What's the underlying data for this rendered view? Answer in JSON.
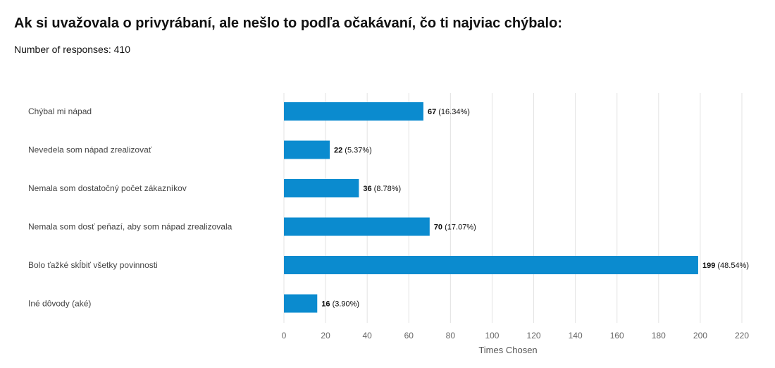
{
  "page": {
    "title": "Ak si uvažovala o privyrábaní, ale nešlo to podľa očakávaní, čo ti najviac chýbalo:",
    "responses_label": "Number of responses: 410"
  },
  "chart_data": {
    "type": "bar",
    "orientation": "horizontal",
    "categories": [
      "Chýbal mi nápad",
      "Nevedela som nápad zrealizovať",
      "Nemala som dostatočný počet zákazníkov",
      "Nemala som dosť peňazí, aby som nápad zrealizovala",
      "Bolo ťažké skĺbiť všetky povinnosti",
      "Iné dôvody (aké)"
    ],
    "values": [
      67,
      22,
      36,
      70,
      199,
      16
    ],
    "percents": [
      "(16.34%)",
      "(5.37%)",
      "(8.78%)",
      "(17.07%)",
      "(48.54%)",
      "(3.90%)"
    ],
    "xlabel": "Times Chosen",
    "ylabel": "",
    "xlim": [
      0,
      220
    ],
    "xticks": [
      0,
      20,
      40,
      60,
      80,
      100,
      120,
      140,
      160,
      180,
      200,
      220
    ],
    "grid": true,
    "bar_color": "#0b8bcf",
    "grid_color": "#e3e3e3"
  }
}
